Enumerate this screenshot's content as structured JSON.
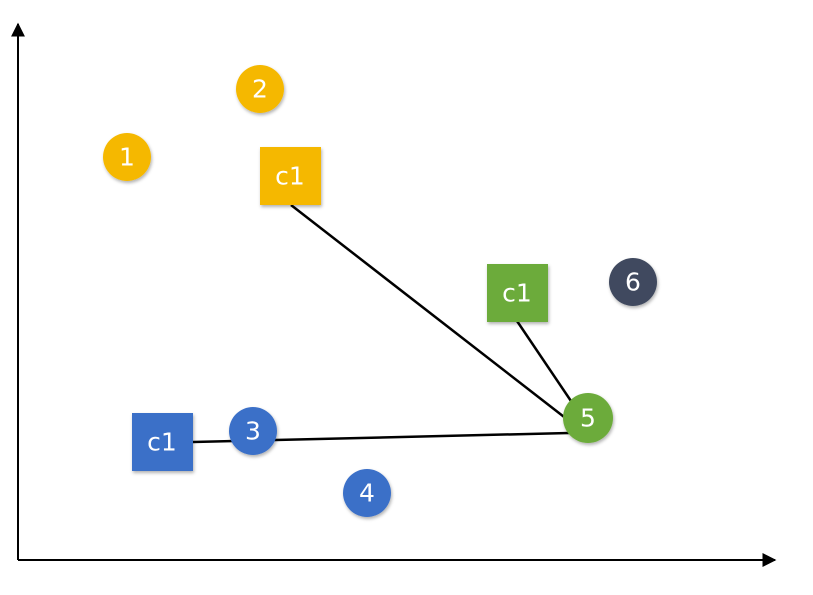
{
  "colors": {
    "yellow": "#f5b800",
    "blue": "#3a6fc8",
    "green": "#6cab3b",
    "slate": "#3f4a5f",
    "axis": "#000000",
    "line": "#000000"
  },
  "points": [
    {
      "label": "1",
      "color": "yellow"
    },
    {
      "label": "2",
      "color": "yellow"
    },
    {
      "label": "3",
      "color": "blue"
    },
    {
      "label": "4",
      "color": "blue"
    },
    {
      "label": "5",
      "color": "green"
    },
    {
      "label": "6",
      "color": "slate"
    }
  ],
  "centroids": [
    {
      "label": "c1",
      "color": "yellow"
    },
    {
      "label": "c1",
      "color": "green"
    },
    {
      "label": "c1",
      "color": "blue"
    }
  ]
}
